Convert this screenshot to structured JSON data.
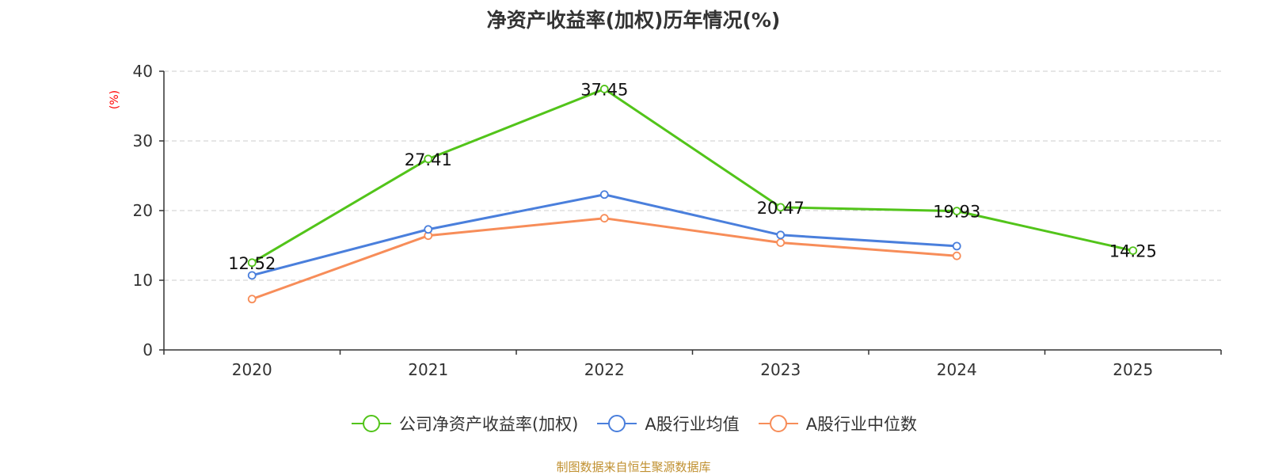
{
  "chart_data": {
    "type": "line",
    "title": "净资产收益率(加权)历年情况(%)",
    "ylabel": "(%)",
    "xlabel": "",
    "ylim": [
      0,
      40
    ],
    "yticks": [
      0,
      10,
      20,
      30,
      40
    ],
    "grid": true,
    "legend_position": "bottom-center",
    "categories": [
      "2020",
      "2021",
      "2022",
      "2023",
      "2024",
      "2025"
    ],
    "series": [
      {
        "name": "公司净资产收益率(加权)",
        "color": "#52c41a",
        "values": [
          12.52,
          27.41,
          37.45,
          20.47,
          19.93,
          14.25
        ],
        "labels": [
          "12.52",
          "27.41",
          "37.45",
          "20.47",
          "19.93",
          "14.25"
        ]
      },
      {
        "name": "A股行业均值",
        "color": "#4a7fdc",
        "values": [
          10.7,
          17.3,
          22.3,
          16.5,
          14.9,
          null
        ]
      },
      {
        "name": "A股行业中位数",
        "color": "#f78d59",
        "values": [
          7.3,
          16.4,
          18.9,
          15.4,
          13.5,
          null
        ]
      }
    ],
    "ylabel_color": "#ff0000"
  },
  "footer": {
    "source": "制图数据来自恒生聚源数据库",
    "color": "#c09030"
  }
}
